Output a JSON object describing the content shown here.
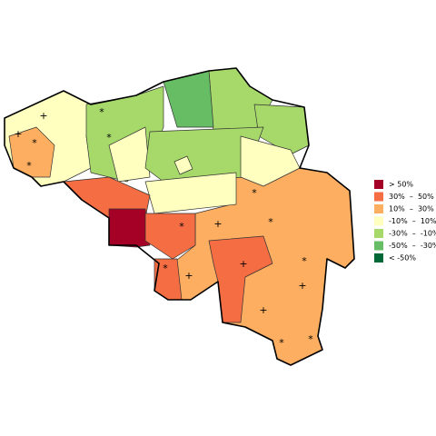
{
  "legend": [
    {
      "label": "> 50%",
      "color": "#a50026"
    },
    {
      "label": "30%  –  50%",
      "color": "#f46d43"
    },
    {
      "label": "10%  –  30%",
      "color": "#fdae61"
    },
    {
      "label": "-10%  –  10%",
      "color": "#ffffbf"
    },
    {
      "label": "-30%  –  -10%",
      "color": "#a6d96a"
    },
    {
      "label": "-50%  –  -30%",
      "color": "#66bd63"
    },
    {
      "label": "< -50%",
      "color": "#006837"
    }
  ],
  "markers": [
    "+",
    "+",
    "*",
    "*",
    "*",
    "*",
    "*",
    "*",
    "+",
    "*",
    "*",
    "+",
    "+",
    "*",
    "+",
    "*",
    "*",
    "+"
  ]
}
